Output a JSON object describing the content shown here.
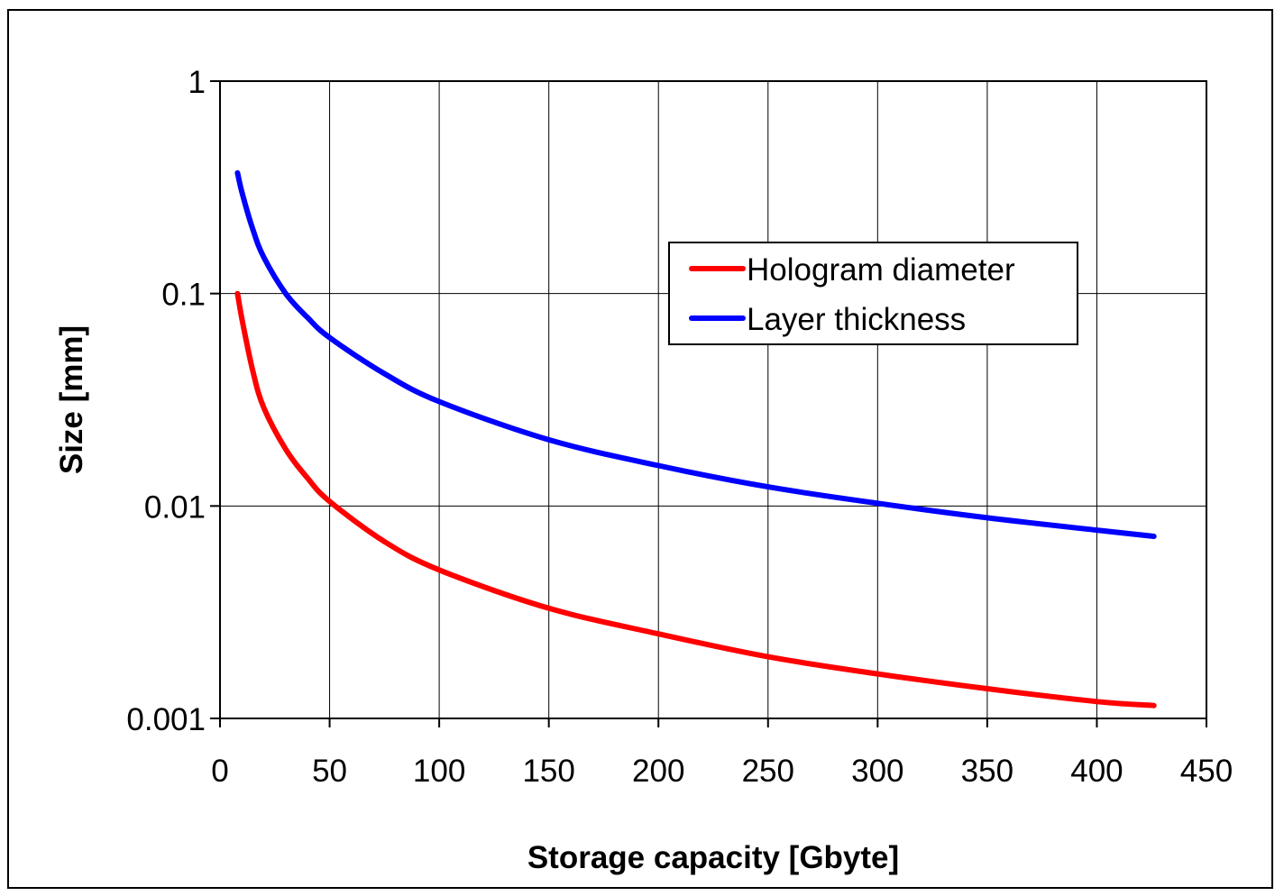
{
  "chart_data": {
    "type": "line",
    "title": "",
    "xlabel": "Storage capacity [Gbyte]",
    "ylabel": "Size [mm]",
    "xlim": [
      0,
      450
    ],
    "ylim": [
      0.001,
      1
    ],
    "yscale": "log",
    "grid": true,
    "legend_position": "top-right",
    "x_ticks": [
      "0",
      "50",
      "100",
      "150",
      "200",
      "250",
      "300",
      "350",
      "400",
      "450"
    ],
    "y_ticks": [
      "0.001",
      "0.01",
      "0.1",
      "1"
    ],
    "series": [
      {
        "name": "Hologram diameter",
        "color": "#ff0000",
        "x": [
          8,
          10,
          15,
          20,
          30,
          40,
          50,
          75,
          100,
          150,
          200,
          250,
          300,
          350,
          400,
          426
        ],
        "y": [
          0.1,
          0.076,
          0.043,
          0.029,
          0.0185,
          0.0135,
          0.0105,
          0.0068,
          0.005,
          0.0033,
          0.0025,
          0.00195,
          0.00162,
          0.00138,
          0.0012,
          0.00115
        ]
      },
      {
        "name": "Layer thickness",
        "color": "#0000ff",
        "x": [
          8,
          10,
          15,
          20,
          30,
          40,
          50,
          75,
          100,
          150,
          200,
          250,
          300,
          350,
          400,
          426
        ],
        "y": [
          0.37,
          0.3,
          0.2,
          0.148,
          0.1,
          0.077,
          0.062,
          0.042,
          0.031,
          0.0205,
          0.0155,
          0.0123,
          0.0103,
          0.0088,
          0.0077,
          0.0072
        ]
      }
    ]
  }
}
